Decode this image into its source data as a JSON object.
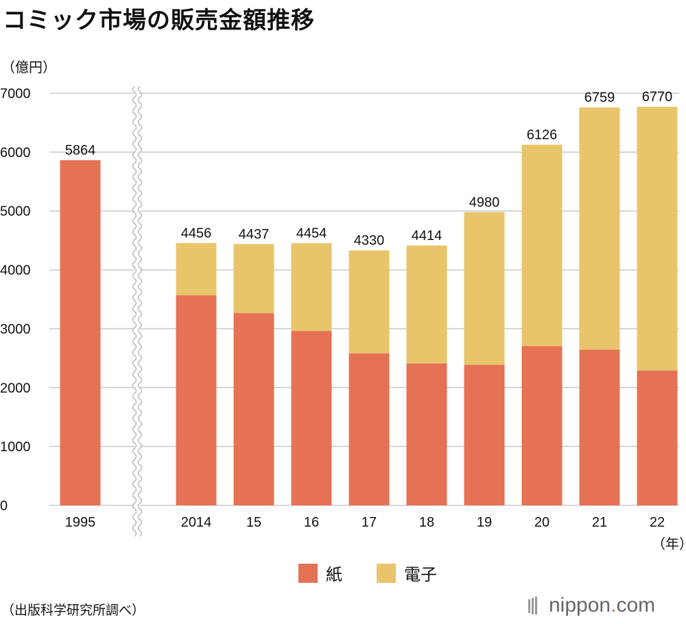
{
  "chart_data": {
    "type": "bar",
    "stacked": true,
    "title": "コミック市場の販売金額推移",
    "ylabel": "（億円）",
    "xunit": "（年）",
    "ylim": [
      0,
      7000
    ],
    "yticks": [
      0,
      1000,
      2000,
      3000,
      4000,
      5000,
      6000,
      7000
    ],
    "categories": [
      "1995",
      "2014",
      "15",
      "16",
      "17",
      "18",
      "19",
      "20",
      "21",
      "22"
    ],
    "series": [
      {
        "name": "紙",
        "color": "#e57255",
        "values": [
          5864,
          3569,
          3266,
          2963,
          2583,
          2413,
          2387,
          2706,
          2645,
          2291
        ]
      },
      {
        "name": "電子",
        "color": "#e8c46b",
        "values": [
          0,
          887,
          1171,
          1491,
          1747,
          2001,
          2593,
          3420,
          4114,
          4479
        ]
      }
    ],
    "totals": [
      5864,
      4456,
      4437,
      4454,
      4330,
      4414,
      4980,
      6126,
      6759,
      6770
    ],
    "axis_break_after": "1995",
    "legend_position": "bottom"
  },
  "source": "（出版科学研究所調べ）",
  "brand": {
    "name": "nippon",
    "dot": ".",
    "tld": "com",
    "color": "#666666",
    "accent": "#e5694f"
  }
}
